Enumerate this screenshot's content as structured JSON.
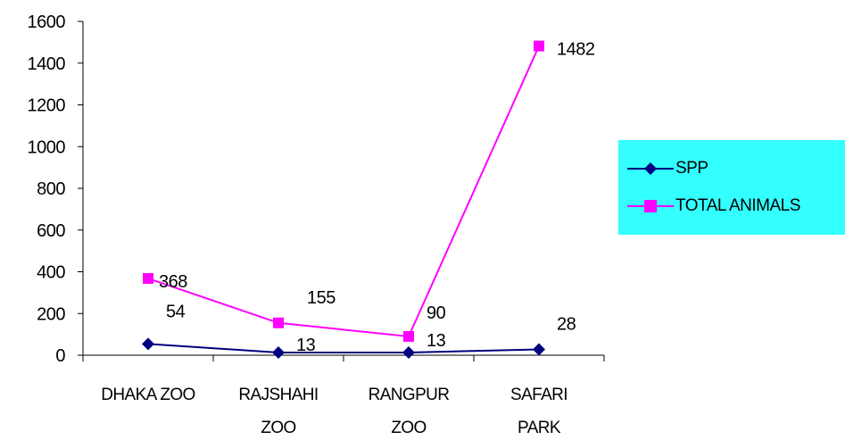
{
  "chart_data": {
    "type": "line",
    "categories": [
      "DHAKA ZOO",
      "RAJSHAHI ZOO",
      "RANGPUR ZOO",
      "SAFARI PARK"
    ],
    "category_lines": [
      [
        "DHAKA ZOO"
      ],
      [
        "RAJSHAHI",
        "ZOO"
      ],
      [
        "RANGPUR",
        "ZOO"
      ],
      [
        "SAFARI",
        "PARK"
      ]
    ],
    "series": [
      {
        "name": "SPP",
        "values": [
          54,
          13,
          13,
          28
        ],
        "color": "#000080",
        "marker": "diamond"
      },
      {
        "name": "TOTAL ANIMALS",
        "values": [
          368,
          155,
          90,
          1482
        ],
        "color": "#ff00ff",
        "marker": "square"
      }
    ],
    "ylim": [
      0,
      1600
    ],
    "yticks": [
      0,
      200,
      400,
      600,
      800,
      1000,
      1200,
      1400,
      1600
    ],
    "grid": false,
    "legend": "right",
    "legend_background": "#33ffff",
    "title": "",
    "xlabel": "",
    "ylabel": ""
  }
}
